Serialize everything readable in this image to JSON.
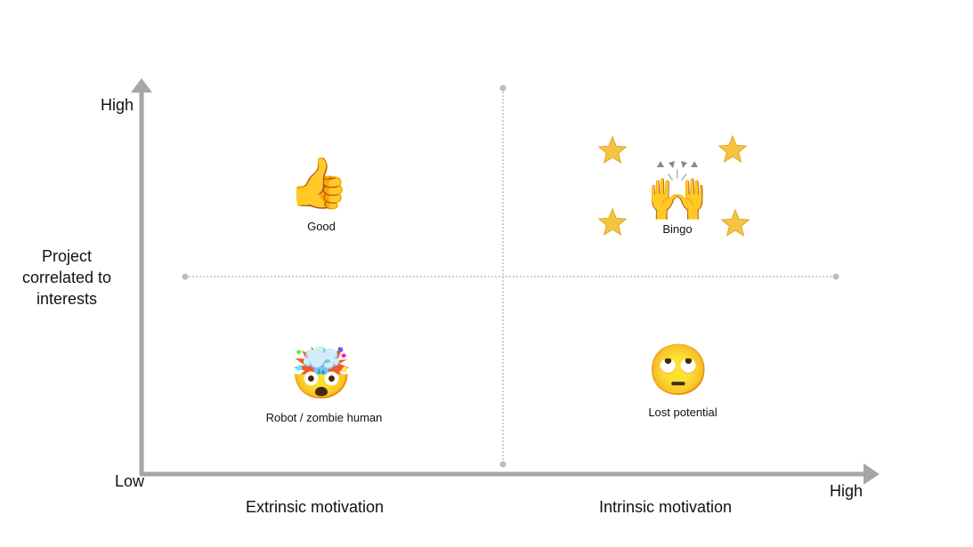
{
  "y_axis": {
    "title_lines": [
      "Project",
      "correlated to",
      "interests"
    ],
    "high": "High",
    "low": "Low"
  },
  "x_axis": {
    "high": "High",
    "left_region": "Extrinsic motivation",
    "right_region": "Intrinsic motivation"
  },
  "colors": {
    "axis": "#a6a6a6",
    "divider": "#bdbdbd",
    "star": "#f5c542"
  },
  "quadrants": [
    {
      "label": "Good",
      "icon": "thumbs-up-icon",
      "glyph": "👍"
    },
    {
      "label": "Bingo",
      "icon": "raising-hands-icon",
      "glyph": "🙌"
    },
    {
      "label": "Robot / zombie human",
      "icon": "exploding-head-icon",
      "glyph": "🤯"
    },
    {
      "label": "Lost potential",
      "icon": "face-rolling-eyes-icon",
      "glyph": "🙄"
    }
  ]
}
